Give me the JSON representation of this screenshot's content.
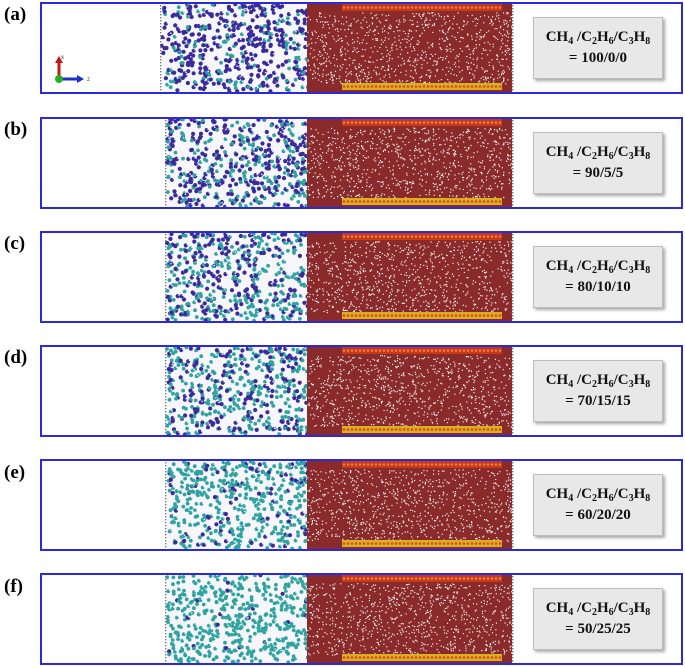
{
  "figure": {
    "formula_label": {
      "parts": [
        "CH",
        "4",
        " /C",
        "2",
        "H",
        "6",
        "/C",
        "3",
        "H",
        "8"
      ]
    },
    "axis_indicator": {
      "x_label": "x",
      "z_label": "z"
    },
    "colors": {
      "frame": "#2a2ad8",
      "methane": "#3b2a9a",
      "ethane_propane": "#2fa3a0",
      "water": "#8a2a2a",
      "hydrogen": "#f2f2f2",
      "wall_top": "#c43a1a",
      "wall_bottom": "#d8b020"
    },
    "panels": [
      {
        "label": "(a)",
        "ratio": "= 100/0/0"
      },
      {
        "label": "(b)",
        "ratio": "= 90/5/5"
      },
      {
        "label": "(c)",
        "ratio": "= 80/10/10"
      },
      {
        "label": "(d)",
        "ratio": "= 70/15/15"
      },
      {
        "label": "(e)",
        "ratio": "= 60/20/20"
      },
      {
        "label": "(f)",
        "ratio": "= 50/25/25"
      }
    ]
  }
}
